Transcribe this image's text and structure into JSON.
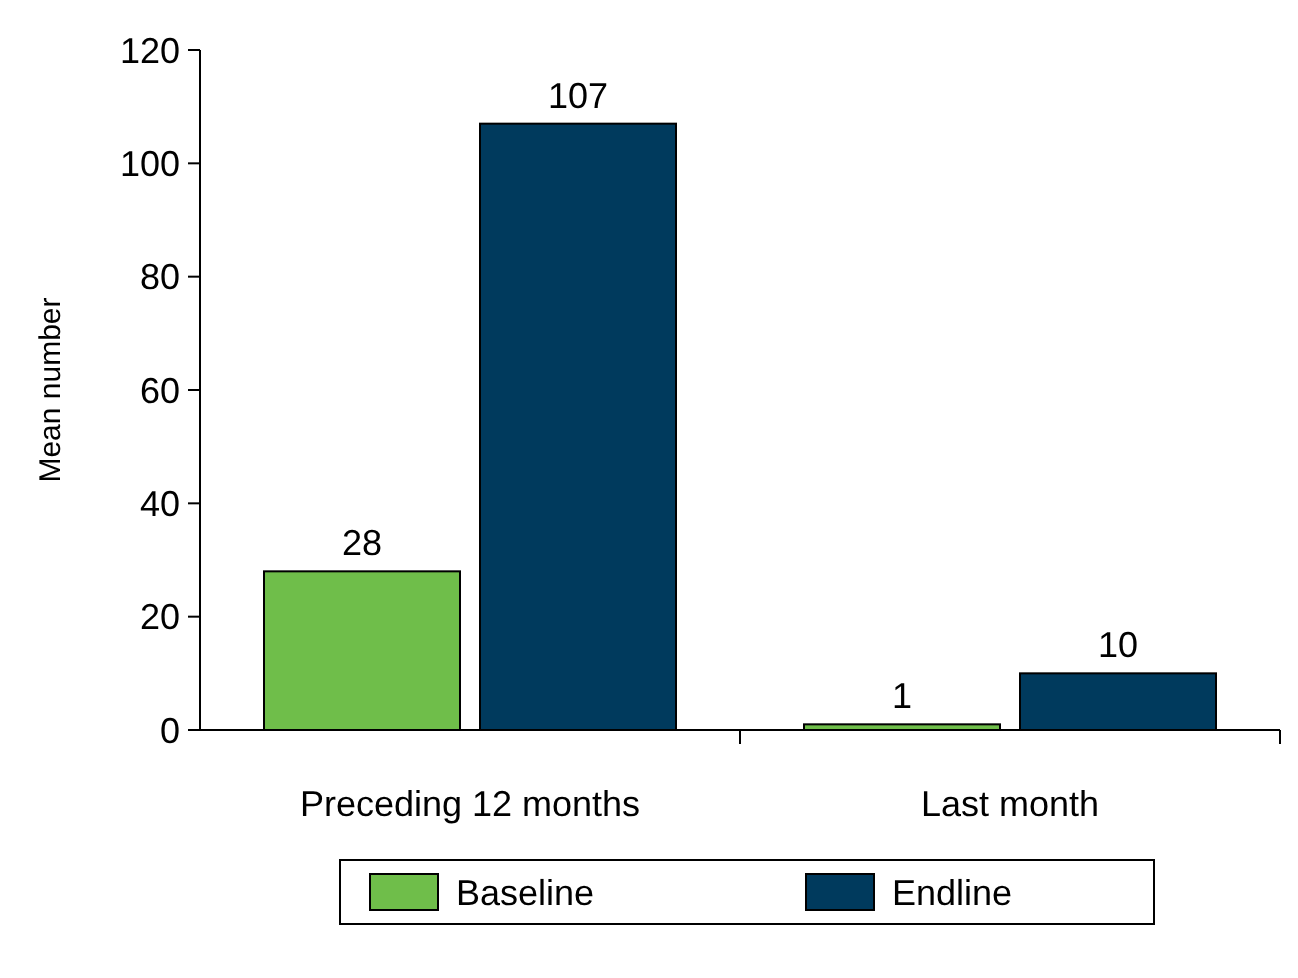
{
  "chart_data": {
    "type": "bar",
    "ylabel": "Mean number",
    "categories": [
      "Preceding 12 months",
      "Last month"
    ],
    "series": [
      {
        "name": "Baseline",
        "color": "#6fbe4a",
        "values": [
          28,
          1
        ]
      },
      {
        "name": "Endline",
        "color": "#003a5d",
        "values": [
          107,
          10
        ]
      }
    ],
    "ylim": [
      0,
      120
    ],
    "yticks": [
      0,
      20,
      40,
      60,
      80,
      100,
      120
    ],
    "data_labels": true,
    "legend": "bottom",
    "grid": false
  }
}
